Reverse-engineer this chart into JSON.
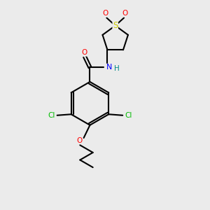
{
  "bg_color": "#ebebeb",
  "bond_color": "#000000",
  "bond_width": 1.5,
  "atom_colors": {
    "O": "#ff0000",
    "N": "#0000ff",
    "S": "#cccc00",
    "Cl": "#00bb00",
    "C": "#000000",
    "H": "#008888"
  },
  "figsize": [
    3.0,
    3.0
  ],
  "dpi": 100
}
